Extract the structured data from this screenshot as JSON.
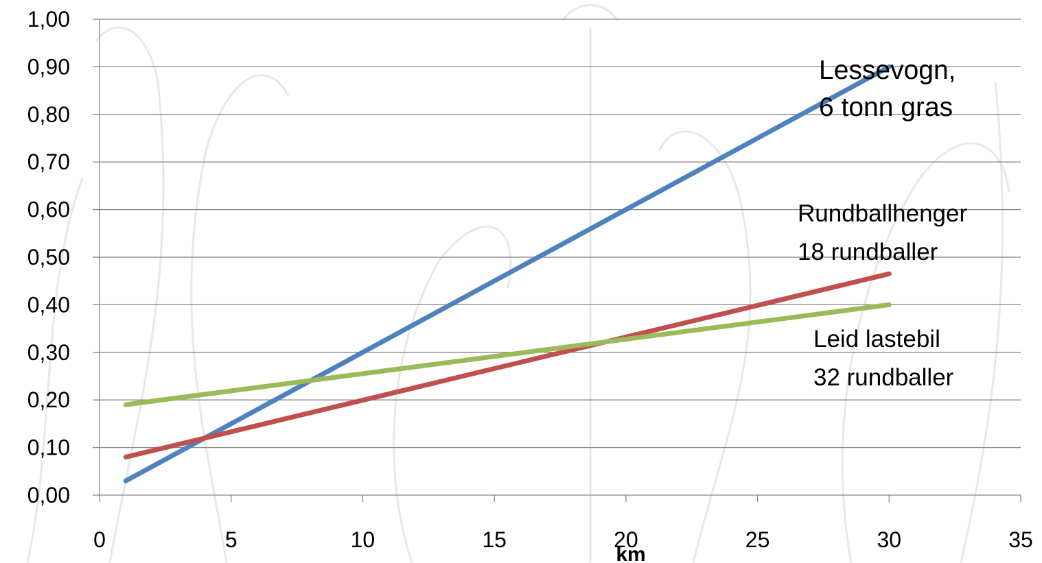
{
  "chart_data": {
    "type": "line",
    "title": "",
    "xlabel": "km",
    "ylabel": "",
    "xlim": [
      0,
      35
    ],
    "ylim": [
      0,
      1.0
    ],
    "x_ticks": [
      "0",
      "5",
      "10",
      "15",
      "20",
      "25",
      "30",
      "35"
    ],
    "y_ticks": [
      "0,00",
      "0,10",
      "0,20",
      "0,30",
      "0,40",
      "0,50",
      "0,60",
      "0,70",
      "0,80",
      "0,90",
      "1,00"
    ],
    "grid": "horizontal",
    "x": [
      1,
      30
    ],
    "series": [
      {
        "label_lines": [
          "Lessevogn,",
          "6 tonn gras"
        ],
        "color": "#4f81bd",
        "values": [
          0.03,
          0.9
        ]
      },
      {
        "label_lines": [
          "Rundballhenger",
          "18 rundballer"
        ],
        "color": "#c0504d",
        "values": [
          0.08,
          0.465
        ]
      },
      {
        "label_lines": [
          "Leid lastebil",
          "32 rundballer"
        ],
        "color": "#9bbb59",
        "values": [
          0.19,
          0.4
        ]
      }
    ]
  }
}
